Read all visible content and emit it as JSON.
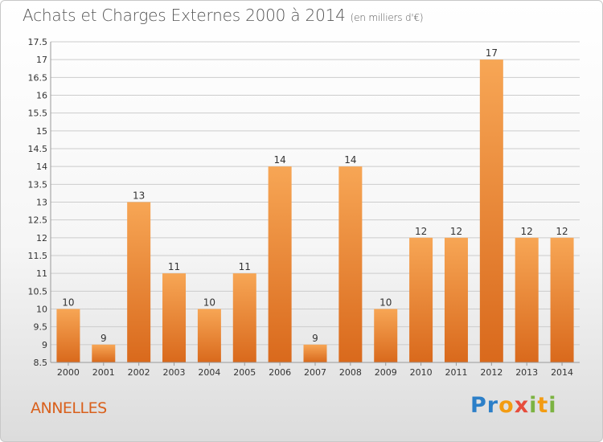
{
  "header": {
    "title": "Achats et Charges Externes 2000 à 2014",
    "unit": "(en milliers d'€)"
  },
  "footer": {
    "city": "ANNELLES",
    "logo": "Proxiti"
  },
  "colors": {
    "bar_light": "#f7a655",
    "bar_dark": "#d9691c",
    "city_text": "#d9601c",
    "grid": "#cccccc"
  },
  "logo_letters": [
    {
      "ch": "P",
      "color": "#2c7fc8"
    },
    {
      "ch": "r",
      "color": "#2c7fc8"
    },
    {
      "ch": "o",
      "color": "#f39c12"
    },
    {
      "ch": "x",
      "color": "#e74c3c"
    },
    {
      "ch": "i",
      "color": "#7cb342"
    },
    {
      "ch": "t",
      "color": "#f39c12"
    },
    {
      "ch": "i",
      "color": "#7cb342"
    }
  ],
  "chart_data": {
    "type": "bar",
    "title": "Achats et Charges Externes 2000 à 2014",
    "subtitle": "(en milliers d'€)",
    "xlabel": "",
    "ylabel": "",
    "categories": [
      "2000",
      "2001",
      "2002",
      "2003",
      "2004",
      "2005",
      "2006",
      "2007",
      "2008",
      "2009",
      "2010",
      "2011",
      "2012",
      "2013",
      "2014"
    ],
    "values": [
      10,
      9,
      13,
      11,
      10,
      11,
      14,
      9,
      14,
      10,
      12,
      12,
      17,
      12,
      12
    ],
    "value_labels": [
      "10",
      "9",
      "13",
      "11",
      "10",
      "11",
      "14",
      "9",
      "14",
      "10",
      "12",
      "12",
      "17",
      "12",
      "12"
    ],
    "ylim": [
      8.5,
      17.5
    ],
    "yticks": [
      8.5,
      9,
      9.5,
      10,
      10.5,
      11,
      11.5,
      12,
      12.5,
      13,
      13.5,
      14,
      14.5,
      15,
      15.5,
      16,
      16.5,
      17,
      17.5
    ],
    "ytick_labels": [
      "8.5",
      "9",
      "9.5",
      "10",
      "10.5",
      "11",
      "11.5",
      "12",
      "12.5",
      "13",
      "13.5",
      "14",
      "14.5",
      "15",
      "15.5",
      "16",
      "16.5",
      "17",
      "17.5"
    ],
    "grid": true,
    "legend": "none"
  }
}
